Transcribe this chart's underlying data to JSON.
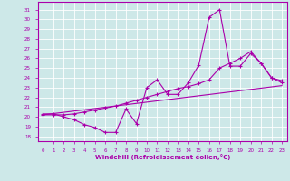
{
  "xlabel": "Windchill (Refroidissement éolien,°C)",
  "background_color": "#cde8e8",
  "grid_color": "#b0d0d0",
  "line_color": "#aa00aa",
  "ylim": [
    17.5,
    31.8
  ],
  "xlim": [
    -0.5,
    23.5
  ],
  "yticks": [
    18,
    19,
    20,
    21,
    22,
    23,
    24,
    25,
    26,
    27,
    28,
    29,
    30,
    31
  ],
  "xticks": [
    0,
    1,
    2,
    3,
    4,
    5,
    6,
    7,
    8,
    9,
    10,
    11,
    12,
    13,
    14,
    15,
    16,
    17,
    18,
    19,
    20,
    21,
    22,
    23
  ],
  "line1_x": [
    0,
    1,
    2,
    3,
    4,
    5,
    6,
    7,
    8,
    9,
    10,
    11,
    12,
    13,
    14,
    15,
    16,
    17,
    18,
    19,
    20,
    21,
    22,
    23
  ],
  "line1_y": [
    20.3,
    20.3,
    20.0,
    19.7,
    19.2,
    18.9,
    18.4,
    18.4,
    20.8,
    19.3,
    23.0,
    23.8,
    22.3,
    22.3,
    23.5,
    25.3,
    30.2,
    31.0,
    25.2,
    25.2,
    26.5,
    25.5,
    24.0,
    23.5
  ],
  "line2_x": [
    0,
    1,
    2,
    3,
    4,
    5,
    6,
    7,
    8,
    9,
    10,
    11,
    12,
    13,
    14,
    15,
    16,
    17,
    18,
    19,
    20,
    21,
    22,
    23
  ],
  "line2_y": [
    20.2,
    20.2,
    20.2,
    20.3,
    20.5,
    20.7,
    20.9,
    21.1,
    21.4,
    21.7,
    22.0,
    22.3,
    22.6,
    22.9,
    23.1,
    23.4,
    23.8,
    25.0,
    25.5,
    26.0,
    26.7,
    25.5,
    24.0,
    23.7
  ],
  "line3_x": [
    0,
    23
  ],
  "line3_y": [
    20.2,
    23.2
  ]
}
